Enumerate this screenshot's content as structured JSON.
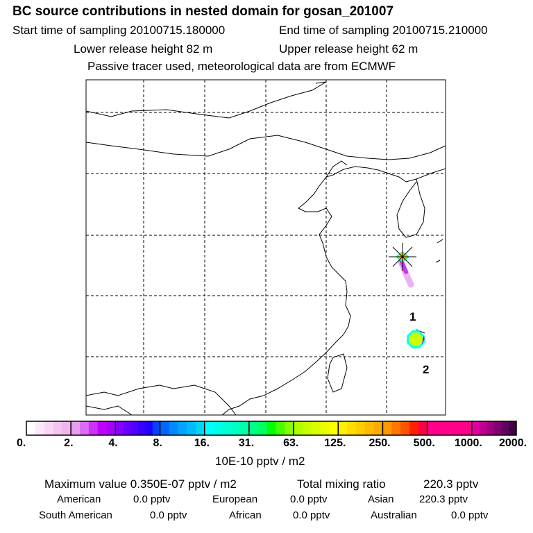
{
  "header": {
    "title": "BC  source contributions in nested domain for gosan_201007",
    "start": "Start time of sampling 20100715.180000",
    "end": "End time of sampling 20100715.210000",
    "lower": "Lower release height   82 m",
    "upper": "Upper release height   62 m",
    "info": "Passive tracer used, meteorological data are from ECMWF"
  },
  "chart_data": {
    "type": "heatmap",
    "title": "BC  source contributions in nested domain for gosan_201007",
    "colorbar": {
      "ticks": [
        "0.",
        "2.",
        "4.",
        "8.",
        "16.",
        "31.",
        "63.",
        "125.",
        "250.",
        "500.",
        "1000.",
        "2000."
      ],
      "unit": "10E-10 pptv / m2",
      "colors": [
        [
          "#ffffff",
          "#fde8fb",
          "#f9d6f6",
          "#f4c4f2",
          "#f0b6ef"
        ],
        [
          "#e89ef0",
          "#dc6cf5",
          "#cc33f8",
          "#c000ff",
          "#a800ff"
        ],
        [
          "#8800ff",
          "#6a00ff",
          "#5500ff",
          "#3800ff",
          "#2000ff",
          "#0044ff"
        ],
        [
          "#0066ff",
          "#0088ff",
          "#00a4ff",
          "#00bcff",
          "#00d4ff"
        ],
        [
          "#00ffff",
          "#00ffe8",
          "#00ffd4",
          "#00ffc0",
          "#00ffa8"
        ],
        [
          "#00ff88",
          "#00ff60",
          "#00ff00",
          "#44ff00",
          "#88ff00"
        ],
        [
          "#b0ff00",
          "#c8ff00",
          "#d8ff00",
          "#e8ff00",
          "#ffff00"
        ],
        [
          "#ffee00",
          "#ffdd00",
          "#ffcc00",
          "#ffbb00",
          "#ffaa00"
        ],
        [
          "#ff9900",
          "#ff7700",
          "#ff5500",
          "#ff2200",
          "#ff0044"
        ],
        [
          "#ff0088",
          "#ff0088",
          "#ff0088",
          "#ff0088"
        ],
        [
          "#e000a0",
          "#c00090",
          "#a00080",
          "#800070",
          "#600060",
          "#400040"
        ]
      ]
    },
    "markers": [
      {
        "label": "1"
      },
      {
        "label": "2"
      }
    ],
    "grid": true
  },
  "footer": {
    "max": "Maximum value  0.350E-07 pptv / m2",
    "total_label": "Total mixing ratio",
    "total_value": "220.3 pptv",
    "rows": [
      [
        {
          "k": "American",
          "v": "0.0 pptv"
        },
        {
          "k": "European",
          "v": "0.0 pptv"
        },
        {
          "k": "Asian",
          "v": "220.3 pptv"
        }
      ],
      [
        {
          "k": "South American",
          "v": "0.0 pptv"
        },
        {
          "k": "African",
          "v": "0.0 pptv"
        },
        {
          "k": "Australian",
          "v": "0.0 pptv"
        }
      ]
    ]
  }
}
